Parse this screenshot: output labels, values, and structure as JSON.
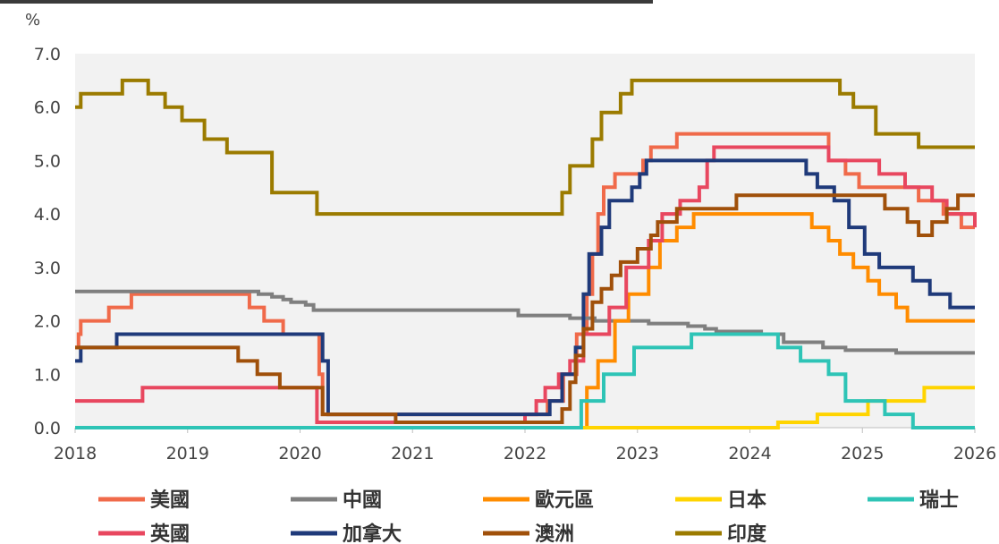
{
  "chart_data": {
    "type": "line",
    "title": "",
    "ylabel": "%",
    "xlabel": "",
    "xlim": [
      2018,
      2026
    ],
    "ylim": [
      0,
      7
    ],
    "x_ticks": [
      "2018",
      "2019",
      "2020",
      "2021",
      "2022",
      "2023",
      "2024",
      "2025",
      "2026"
    ],
    "y_ticks": [
      "0.0",
      "1.0",
      "2.0",
      "3.0",
      "4.0",
      "5.0",
      "6.0",
      "7.0"
    ],
    "grid": false,
    "legend_position": "bottom",
    "series": [
      {
        "name": "美國",
        "color": "#F06A4A",
        "points": [
          [
            2018.0,
            1.5
          ],
          [
            2018.03,
            1.75
          ],
          [
            2018.05,
            2.0
          ],
          [
            2018.3,
            2.25
          ],
          [
            2018.5,
            2.5
          ],
          [
            2019.55,
            2.25
          ],
          [
            2019.68,
            2.0
          ],
          [
            2019.85,
            1.75
          ],
          [
            2020.17,
            1.0
          ],
          [
            2020.2,
            0.25
          ],
          [
            2021.95,
            0.25
          ],
          [
            2022.2,
            0.5
          ],
          [
            2022.34,
            1.0
          ],
          [
            2022.46,
            1.75
          ],
          [
            2022.55,
            2.5
          ],
          [
            2022.6,
            3.25
          ],
          [
            2022.65,
            4.0
          ],
          [
            2022.7,
            4.5
          ],
          [
            2022.8,
            4.75
          ],
          [
            2023.05,
            5.0
          ],
          [
            2023.12,
            5.25
          ],
          [
            2023.35,
            5.5
          ],
          [
            2024.3,
            5.5
          ],
          [
            2024.7,
            5.0
          ],
          [
            2024.85,
            4.75
          ],
          [
            2024.97,
            4.5
          ],
          [
            2025.35,
            4.5
          ],
          [
            2025.5,
            4.25
          ],
          [
            2025.72,
            4.0
          ],
          [
            2025.88,
            3.75
          ],
          [
            2026.0,
            3.75
          ]
        ]
      },
      {
        "name": "中國",
        "color": "#7F7F7F",
        "points": [
          [
            2018.0,
            2.55
          ],
          [
            2019.45,
            2.55
          ],
          [
            2019.63,
            2.5
          ],
          [
            2019.75,
            2.45
          ],
          [
            2019.85,
            2.4
          ],
          [
            2019.92,
            2.35
          ],
          [
            2020.05,
            2.3
          ],
          [
            2020.12,
            2.2
          ],
          [
            2021.85,
            2.2
          ],
          [
            2021.94,
            2.1
          ],
          [
            2022.1,
            2.1
          ],
          [
            2022.4,
            2.05
          ],
          [
            2022.62,
            2.0
          ],
          [
            2023.1,
            1.95
          ],
          [
            2023.45,
            1.9
          ],
          [
            2023.6,
            1.85
          ],
          [
            2023.7,
            1.8
          ],
          [
            2024.1,
            1.75
          ],
          [
            2024.3,
            1.6
          ],
          [
            2024.65,
            1.5
          ],
          [
            2024.85,
            1.45
          ],
          [
            2025.3,
            1.4
          ],
          [
            2026.0,
            1.4
          ]
        ]
      },
      {
        "name": "歐元區",
        "color": "#FF8C00",
        "points": [
          [
            2018.0,
            0.0
          ],
          [
            2022.52,
            0.0
          ],
          [
            2022.55,
            0.75
          ],
          [
            2022.65,
            1.25
          ],
          [
            2022.8,
            2.0
          ],
          [
            2022.92,
            2.5
          ],
          [
            2023.1,
            3.0
          ],
          [
            2023.2,
            3.5
          ],
          [
            2023.35,
            3.75
          ],
          [
            2023.5,
            4.0
          ],
          [
            2024.45,
            4.0
          ],
          [
            2024.55,
            3.75
          ],
          [
            2024.7,
            3.5
          ],
          [
            2024.8,
            3.25
          ],
          [
            2024.92,
            3.0
          ],
          [
            2025.05,
            2.75
          ],
          [
            2025.15,
            2.5
          ],
          [
            2025.3,
            2.25
          ],
          [
            2025.4,
            2.0
          ],
          [
            2026.0,
            2.0
          ]
        ]
      },
      {
        "name": "日本",
        "color": "#FFD400",
        "points": [
          [
            2018.0,
            0.0
          ],
          [
            2024.22,
            0.0
          ],
          [
            2024.25,
            0.1
          ],
          [
            2024.6,
            0.25
          ],
          [
            2025.05,
            0.5
          ],
          [
            2025.55,
            0.75
          ],
          [
            2026.0,
            0.75
          ]
        ]
      },
      {
        "name": "瑞士",
        "color": "#2EC4B6",
        "points": [
          [
            2018.0,
            0.0
          ],
          [
            2022.45,
            0.0
          ],
          [
            2022.5,
            0.5
          ],
          [
            2022.7,
            1.0
          ],
          [
            2022.97,
            1.5
          ],
          [
            2023.48,
            1.75
          ],
          [
            2024.2,
            1.75
          ],
          [
            2024.25,
            1.5
          ],
          [
            2024.45,
            1.25
          ],
          [
            2024.7,
            1.0
          ],
          [
            2024.85,
            0.5
          ],
          [
            2025.2,
            0.25
          ],
          [
            2025.45,
            0.0
          ],
          [
            2026.0,
            0.0
          ]
        ]
      },
      {
        "name": "英國",
        "color": "#E8475F",
        "points": [
          [
            2018.0,
            0.5
          ],
          [
            2018.6,
            0.75
          ],
          [
            2020.15,
            0.1
          ],
          [
            2021.95,
            0.1
          ],
          [
            2022.0,
            0.25
          ],
          [
            2022.1,
            0.5
          ],
          [
            2022.18,
            0.75
          ],
          [
            2022.3,
            1.0
          ],
          [
            2022.4,
            1.25
          ],
          [
            2022.52,
            1.75
          ],
          [
            2022.75,
            2.25
          ],
          [
            2022.9,
            3.0
          ],
          [
            2023.1,
            3.5
          ],
          [
            2023.22,
            4.0
          ],
          [
            2023.38,
            4.25
          ],
          [
            2023.55,
            4.5
          ],
          [
            2023.62,
            5.0
          ],
          [
            2023.68,
            5.25
          ],
          [
            2024.6,
            5.25
          ],
          [
            2024.7,
            5.0
          ],
          [
            2025.15,
            4.75
          ],
          [
            2025.38,
            4.5
          ],
          [
            2025.62,
            4.25
          ],
          [
            2025.75,
            4.0
          ],
          [
            2026.0,
            3.75
          ]
        ]
      },
      {
        "name": "加拿大",
        "color": "#1F3A7A",
        "points": [
          [
            2018.0,
            1.25
          ],
          [
            2018.05,
            1.5
          ],
          [
            2018.37,
            1.75
          ],
          [
            2019.85,
            1.75
          ],
          [
            2020.2,
            1.25
          ],
          [
            2020.25,
            0.25
          ],
          [
            2022.18,
            0.25
          ],
          [
            2022.22,
            0.5
          ],
          [
            2022.33,
            1.0
          ],
          [
            2022.45,
            1.5
          ],
          [
            2022.52,
            2.5
          ],
          [
            2022.57,
            3.25
          ],
          [
            2022.68,
            3.75
          ],
          [
            2022.75,
            4.25
          ],
          [
            2022.95,
            4.5
          ],
          [
            2023.02,
            4.75
          ],
          [
            2023.08,
            5.0
          ],
          [
            2024.42,
            5.0
          ],
          [
            2024.5,
            4.75
          ],
          [
            2024.6,
            4.5
          ],
          [
            2024.75,
            4.25
          ],
          [
            2024.88,
            3.75
          ],
          [
            2025.02,
            3.25
          ],
          [
            2025.15,
            3.0
          ],
          [
            2025.45,
            2.75
          ],
          [
            2025.6,
            2.5
          ],
          [
            2025.78,
            2.25
          ],
          [
            2026.0,
            2.25
          ]
        ]
      },
      {
        "name": "澳洲",
        "color": "#A0500A",
        "points": [
          [
            2018.0,
            1.5
          ],
          [
            2019.42,
            1.5
          ],
          [
            2019.45,
            1.25
          ],
          [
            2019.62,
            1.0
          ],
          [
            2019.82,
            0.75
          ],
          [
            2020.2,
            0.25
          ],
          [
            2020.85,
            0.1
          ],
          [
            2022.33,
            0.35
          ],
          [
            2022.4,
            0.85
          ],
          [
            2022.45,
            1.35
          ],
          [
            2022.52,
            1.85
          ],
          [
            2022.6,
            2.35
          ],
          [
            2022.68,
            2.6
          ],
          [
            2022.77,
            2.85
          ],
          [
            2022.85,
            3.1
          ],
          [
            2023.0,
            3.35
          ],
          [
            2023.12,
            3.6
          ],
          [
            2023.18,
            3.85
          ],
          [
            2023.35,
            4.1
          ],
          [
            2023.88,
            4.35
          ],
          [
            2025.05,
            4.35
          ],
          [
            2025.2,
            4.1
          ],
          [
            2025.4,
            3.85
          ],
          [
            2025.5,
            3.6
          ],
          [
            2025.62,
            3.85
          ],
          [
            2025.75,
            4.1
          ],
          [
            2025.85,
            4.35
          ],
          [
            2026.0,
            4.35
          ]
        ]
      },
      {
        "name": "印度",
        "color": "#9B7B00",
        "points": [
          [
            2018.0,
            6.0
          ],
          [
            2018.05,
            6.25
          ],
          [
            2018.42,
            6.5
          ],
          [
            2018.65,
            6.25
          ],
          [
            2018.8,
            6.0
          ],
          [
            2018.95,
            5.75
          ],
          [
            2019.15,
            5.4
          ],
          [
            2019.35,
            5.15
          ],
          [
            2019.75,
            4.4
          ],
          [
            2020.15,
            4.0
          ],
          [
            2022.33,
            4.4
          ],
          [
            2022.4,
            4.9
          ],
          [
            2022.6,
            5.4
          ],
          [
            2022.68,
            5.9
          ],
          [
            2022.85,
            6.25
          ],
          [
            2022.95,
            6.5
          ],
          [
            2024.65,
            6.5
          ],
          [
            2024.8,
            6.25
          ],
          [
            2024.92,
            6.0
          ],
          [
            2025.12,
            5.5
          ],
          [
            2025.5,
            5.25
          ],
          [
            2026.0,
            5.25
          ]
        ]
      }
    ]
  }
}
